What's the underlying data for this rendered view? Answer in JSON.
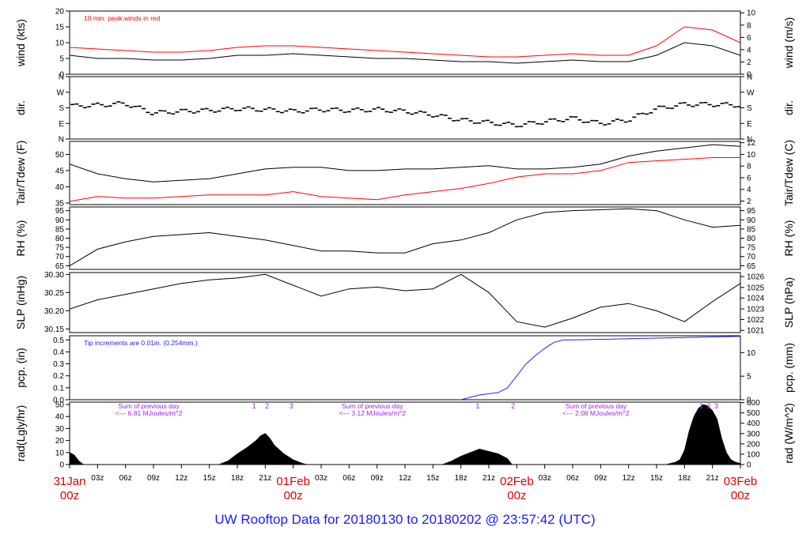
{
  "title": "UW Rooftop Data for 20180130  to  20180202 @ 23:57:42  (UTC)",
  "time_axis": {
    "hours_total": 72,
    "ticks": [
      {
        "hour": 0,
        "label": "31Jan",
        "sub": "00z",
        "major": true
      },
      {
        "hour": 3,
        "label": "03z"
      },
      {
        "hour": 6,
        "label": "06z"
      },
      {
        "hour": 9,
        "label": "09z"
      },
      {
        "hour": 12,
        "label": "12z"
      },
      {
        "hour": 15,
        "label": "15z"
      },
      {
        "hour": 18,
        "label": "18z"
      },
      {
        "hour": 21,
        "label": "21z"
      },
      {
        "hour": 24,
        "label": "01Feb",
        "sub": "00z",
        "major": true
      },
      {
        "hour": 27,
        "label": "03z"
      },
      {
        "hour": 30,
        "label": "06z"
      },
      {
        "hour": 33,
        "label": "09z"
      },
      {
        "hour": 36,
        "label": "12z"
      },
      {
        "hour": 39,
        "label": "15z"
      },
      {
        "hour": 42,
        "label": "18z"
      },
      {
        "hour": 45,
        "label": "21z"
      },
      {
        "hour": 48,
        "label": "02Feb",
        "sub": "00z",
        "major": true
      },
      {
        "hour": 51,
        "label": "03z"
      },
      {
        "hour": 54,
        "label": "06z"
      },
      {
        "hour": 57,
        "label": "09z"
      },
      {
        "hour": 60,
        "label": "12z"
      },
      {
        "hour": 63,
        "label": "15z"
      },
      {
        "hour": 66,
        "label": "18z"
      },
      {
        "hour": 69,
        "label": "21z"
      },
      {
        "hour": 72,
        "label": "03Feb",
        "sub": "00z",
        "major": true
      }
    ],
    "major_color": "#e00000"
  },
  "colors": {
    "black": "#000000",
    "red": "#ff0000",
    "blue": "#2020ff",
    "purple": "#a020f0"
  },
  "chart_data": [
    {
      "type": "line",
      "id": "wind",
      "ylabel_left": "wind (kts)",
      "ylabel_right": "wind (m/s)",
      "ylim": [
        0,
        20
      ],
      "left_ticks": [
        0,
        5,
        10,
        15,
        20
      ],
      "right_ticks": [
        {
          "v": 0,
          "label": "0"
        },
        {
          "v": 3.889,
          "label": "2"
        },
        {
          "v": 7.776,
          "label": "4"
        },
        {
          "v": 11.66,
          "label": "6"
        },
        {
          "v": 15.55,
          "label": "8"
        },
        {
          "v": 19.44,
          "label": "10"
        }
      ],
      "annotation": "10 min. peak winds in red",
      "series": [
        {
          "color": "#000000",
          "x": [
            0,
            3,
            6,
            9,
            12,
            15,
            18,
            21,
            24,
            27,
            30,
            33,
            36,
            39,
            42,
            45,
            48,
            51,
            54,
            57,
            60,
            63,
            66,
            69,
            72
          ],
          "y": [
            6,
            5,
            5,
            4.5,
            4.5,
            5,
            6,
            6,
            6.5,
            6,
            5.5,
            5,
            5,
            4.5,
            4,
            4,
            3.5,
            4,
            4.5,
            4,
            4,
            6,
            10,
            9,
            6
          ]
        },
        {
          "color": "#ff0000",
          "x": [
            0,
            3,
            6,
            9,
            12,
            15,
            18,
            21,
            24,
            27,
            30,
            33,
            36,
            39,
            42,
            45,
            48,
            51,
            54,
            57,
            60,
            63,
            66,
            69,
            72
          ],
          "y": [
            8.5,
            8,
            7.5,
            7,
            7,
            7.5,
            8.5,
            9,
            9,
            8.5,
            8,
            7.5,
            7,
            6.5,
            6,
            5.5,
            5.5,
            6,
            6.5,
            6,
            6,
            9,
            15,
            14,
            10
          ]
        }
      ]
    },
    {
      "type": "scatter",
      "id": "dir",
      "ylabel_left": "dir.",
      "ylabel_right": "dir.",
      "ylim": [
        0,
        360
      ],
      "left_ticks": [
        {
          "v": 0,
          "label": "N"
        },
        {
          "v": 90,
          "label": "E"
        },
        {
          "v": 180,
          "label": "S"
        },
        {
          "v": 270,
          "label": "W"
        },
        {
          "v": 360,
          "label": "N"
        }
      ],
      "right_ticks": [
        {
          "v": 0,
          "label": "N"
        },
        {
          "v": 90,
          "label": "E"
        },
        {
          "v": 180,
          "label": "S"
        },
        {
          "v": 270,
          "label": "W"
        },
        {
          "v": 360,
          "label": "N"
        }
      ],
      "series": [
        {
          "color": "#000000",
          "x": [
            0,
            3,
            6,
            9,
            12,
            15,
            18,
            21,
            24,
            27,
            30,
            33,
            36,
            39,
            42,
            45,
            48,
            51,
            54,
            57,
            60,
            63,
            66,
            69,
            72
          ],
          "y": [
            190,
            195,
            205,
            150,
            160,
            165,
            175,
            170,
            160,
            170,
            165,
            170,
            160,
            140,
            110,
            95,
            80,
            100,
            120,
            90,
            110,
            175,
            200,
            200,
            195
          ]
        }
      ]
    },
    {
      "type": "line",
      "id": "temp",
      "ylabel_left": "Tair/Tdew (F)",
      "ylabel_right": "Tair/Tdew (C)",
      "ylim": [
        34.5,
        54
      ],
      "left_ticks": [
        35,
        40,
        45,
        50
      ],
      "right_ticks": [
        {
          "v": 35.6,
          "label": "2"
        },
        {
          "v": 39.2,
          "label": "4"
        },
        {
          "v": 42.8,
          "label": "6"
        },
        {
          "v": 46.4,
          "label": "8"
        },
        {
          "v": 50,
          "label": "10"
        },
        {
          "v": 53.6,
          "label": "12"
        }
      ],
      "series": [
        {
          "color": "#000000",
          "x": [
            0,
            3,
            6,
            9,
            12,
            15,
            18,
            21,
            24,
            27,
            30,
            33,
            36,
            39,
            42,
            45,
            48,
            51,
            54,
            57,
            60,
            63,
            66,
            69,
            72
          ],
          "y": [
            47,
            44,
            42.5,
            41.5,
            42,
            42.5,
            44,
            45.5,
            46,
            46,
            45,
            45,
            45.5,
            45.5,
            46,
            46.5,
            45.5,
            45.5,
            46,
            47,
            49.5,
            51,
            52,
            53,
            52.5
          ]
        },
        {
          "color": "#ff0000",
          "x": [
            0,
            3,
            6,
            9,
            12,
            15,
            18,
            21,
            24,
            27,
            30,
            33,
            36,
            39,
            42,
            45,
            48,
            51,
            54,
            57,
            60,
            63,
            66,
            69,
            72
          ],
          "y": [
            35.5,
            37,
            36.5,
            36.5,
            37,
            37.5,
            37.5,
            37.5,
            38.5,
            37,
            36.5,
            36,
            37.5,
            38.5,
            39.5,
            41,
            43,
            44,
            44,
            45,
            47.5,
            48,
            48.5,
            49,
            49
          ]
        }
      ]
    },
    {
      "type": "line",
      "id": "rh",
      "ylabel_left": "RH (%)",
      "ylabel_right": "RH (%)",
      "ylim": [
        63,
        97
      ],
      "left_ticks": [
        65,
        70,
        75,
        80,
        85,
        90,
        95
      ],
      "right_ticks": [
        {
          "v": 65,
          "label": "65"
        },
        {
          "v": 70,
          "label": "70"
        },
        {
          "v": 75,
          "label": "75"
        },
        {
          "v": 80,
          "label": "80"
        },
        {
          "v": 85,
          "label": "85"
        },
        {
          "v": 90,
          "label": "90"
        },
        {
          "v": 95,
          "label": "95"
        }
      ],
      "series": [
        {
          "color": "#000000",
          "x": [
            0,
            3,
            6,
            9,
            12,
            15,
            18,
            21,
            24,
            27,
            30,
            33,
            36,
            39,
            42,
            45,
            48,
            51,
            54,
            57,
            60,
            63,
            66,
            69,
            72
          ],
          "y": [
            65,
            74,
            78,
            81,
            82,
            83,
            81,
            79,
            76,
            73,
            73,
            72,
            72,
            77,
            79,
            83,
            90,
            94,
            95,
            95.5,
            96,
            95,
            90,
            86,
            87
          ]
        }
      ]
    },
    {
      "type": "line",
      "id": "slp",
      "ylabel_left": "SLP (inHg)",
      "ylabel_right": "SLP (hPa)",
      "ylim": [
        30.14,
        30.305
      ],
      "left_ticks": [
        {
          "v": 30.15,
          "label": "30.15"
        },
        {
          "v": 30.2,
          "label": "30.20"
        },
        {
          "v": 30.25,
          "label": "30.25"
        },
        {
          "v": 30.3,
          "label": "30.30"
        }
      ],
      "right_ticks": [
        {
          "v": 30.146,
          "label": "1021"
        },
        {
          "v": 30.176,
          "label": "1022"
        },
        {
          "v": 30.205,
          "label": "1023"
        },
        {
          "v": 30.235,
          "label": "1024"
        },
        {
          "v": 30.264,
          "label": "1025"
        },
        {
          "v": 30.294,
          "label": "1026"
        }
      ],
      "series": [
        {
          "color": "#000000",
          "x": [
            0,
            3,
            6,
            9,
            12,
            15,
            18,
            21,
            24,
            27,
            30,
            33,
            36,
            39,
            42,
            45,
            48,
            51,
            54,
            57,
            60,
            63,
            66,
            69,
            72
          ],
          "y": [
            30.205,
            30.23,
            30.245,
            30.26,
            30.275,
            30.285,
            30.29,
            30.3,
            30.27,
            30.24,
            30.26,
            30.265,
            30.255,
            30.26,
            30.3,
            30.25,
            30.17,
            30.155,
            30.18,
            30.21,
            30.22,
            30.2,
            30.17,
            30.225,
            30.275
          ]
        }
      ]
    },
    {
      "type": "line",
      "id": "pcp",
      "ylabel_left": "pcp. (in)",
      "ylabel_right": "pcp. (mm)",
      "ylim": [
        0,
        0.535
      ],
      "left_ticks": [
        {
          "v": 0,
          "label": "0.0"
        },
        {
          "v": 0.1,
          "label": "0.1"
        },
        {
          "v": 0.2,
          "label": "0.2"
        },
        {
          "v": 0.3,
          "label": "0.3"
        },
        {
          "v": 0.4,
          "label": "0.4"
        },
        {
          "v": 0.5,
          "label": "0.5"
        }
      ],
      "right_ticks": [
        {
          "v": 0,
          "label": "0"
        },
        {
          "v": 0.197,
          "label": "5"
        },
        {
          "v": 0.394,
          "label": "10"
        }
      ],
      "annotation": "Tip increments are 0.01in. (0.254mm.)",
      "series": [
        {
          "color": "#2020ff",
          "x": [
            0,
            42,
            44,
            46,
            47,
            48,
            49,
            50,
            51,
            52,
            53,
            54,
            57,
            60,
            63,
            66,
            69,
            72
          ],
          "y": [
            0,
            0,
            0.04,
            0.06,
            0.1,
            0.2,
            0.3,
            0.37,
            0.43,
            0.48,
            0.5,
            0.5,
            0.505,
            0.51,
            0.515,
            0.52,
            0.525,
            0.53
          ]
        },
        {
          "color": "#000000",
          "x": [
            0,
            42
          ],
          "y": [
            0,
            0
          ]
        }
      ]
    },
    {
      "type": "area",
      "id": "rad",
      "ylabel_left": "rad(Lgly/hr)",
      "ylabel_right": "rad (W/m^2)",
      "ylim": [
        0,
        52
      ],
      "left_ticks": [
        0,
        10,
        20,
        30,
        40,
        50
      ],
      "right_ticks": [
        {
          "v": 0,
          "label": "0"
        },
        {
          "v": 8.6,
          "label": "100"
        },
        {
          "v": 17.2,
          "label": "200"
        },
        {
          "v": 25.8,
          "label": "300"
        },
        {
          "v": 34.4,
          "label": "400"
        },
        {
          "v": 43,
          "label": "500"
        },
        {
          "v": 51.6,
          "label": "600"
        }
      ],
      "daily_sums": [
        {
          "hour": 8.5,
          "line1": "Sum of previous day",
          "line2": "<--- 6.81 MJoules/m^2"
        },
        {
          "hour": 32.5,
          "line1": "Sum of previous day",
          "line2": "<--- 3.12 MJoules/m^2"
        },
        {
          "hour": 56.5,
          "line1": "Sum of previous day",
          "line2": "<--- 2.08 MJoules/m^2"
        }
      ],
      "markers": [
        {
          "hour": 19.8,
          "label": "1"
        },
        {
          "hour": 21.2,
          "label": "2"
        },
        {
          "hour": 23.8,
          "label": "3"
        },
        {
          "hour": 43.8,
          "label": "1"
        },
        {
          "hour": 47.6,
          "label": "2"
        },
        {
          "hour": 67.8,
          "label": "1"
        },
        {
          "hour": 68.6,
          "label": "2"
        },
        {
          "hour": 69.4,
          "label": "3"
        }
      ],
      "series": [
        {
          "color": "#000000",
          "x": [
            0,
            0.5,
            1,
            1.5,
            16,
            17,
            18,
            19,
            20,
            20.5,
            21,
            21.5,
            22,
            23,
            24,
            25,
            25.5,
            40,
            41,
            42,
            43,
            44,
            45,
            46,
            47,
            47.5,
            64,
            65,
            65.5,
            66,
            66.5,
            67,
            67.5,
            68,
            68.5,
            69,
            69.5,
            70,
            70.5,
            71,
            71.5,
            72
          ],
          "y": [
            10,
            8,
            3,
            0,
            0,
            3,
            9,
            14,
            20,
            24,
            26,
            22,
            16,
            9,
            4,
            1,
            0,
            0,
            3,
            7,
            10,
            13,
            11,
            9,
            5,
            0,
            0,
            2,
            4,
            12,
            28,
            40,
            47,
            50,
            49,
            45,
            38,
            22,
            10,
            4,
            2,
            1
          ]
        }
      ]
    }
  ]
}
